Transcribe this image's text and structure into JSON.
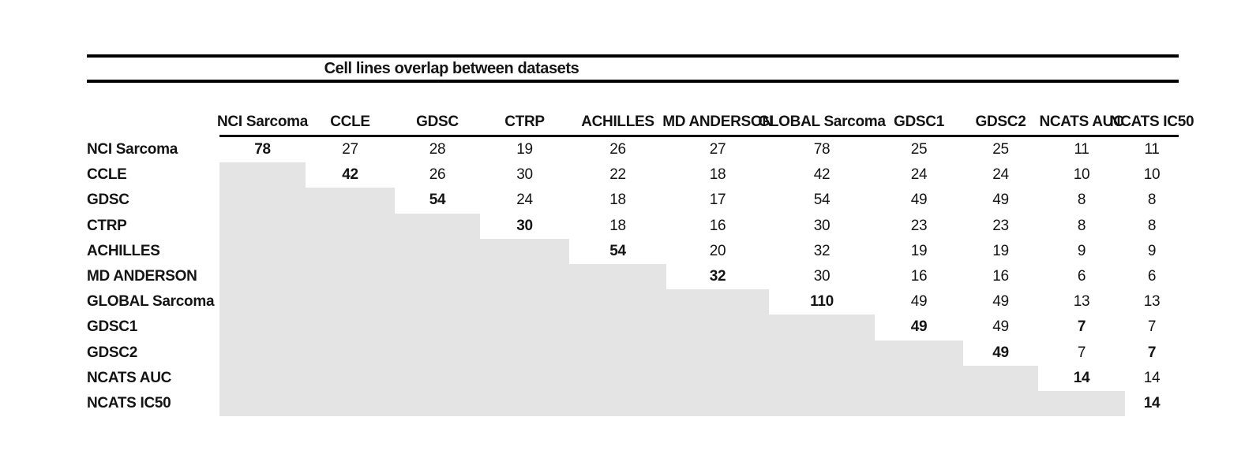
{
  "title": "Cell lines overlap between datasets",
  "colors": {
    "shaded_cell": "#e5e4e4",
    "text": "#141414",
    "rule": "#000000",
    "background": "#ffffff"
  },
  "matrix": {
    "columns": [
      "NCI Sarcoma",
      "CCLE",
      "GDSC",
      "CTRP",
      "ACHILLES",
      "MD ANDERSON",
      "GLOBAL Sarcoma",
      "GDSC1",
      "GDSC2",
      "NCATS AUC",
      "NCATS IC50"
    ],
    "rows": [
      {
        "label": "NCI Sarcoma",
        "cells": [
          {
            "v": "78",
            "bold": true
          },
          {
            "v": "27",
            "bold": false
          },
          {
            "v": "28",
            "bold": false
          },
          {
            "v": "19",
            "bold": false
          },
          {
            "v": "26",
            "bold": false
          },
          {
            "v": "27",
            "bold": false
          },
          {
            "v": "78",
            "bold": false
          },
          {
            "v": "25",
            "bold": false
          },
          {
            "v": "25",
            "bold": false
          },
          {
            "v": "11",
            "bold": false
          },
          {
            "v": "11",
            "bold": false
          }
        ]
      },
      {
        "label": "CCLE",
        "cells": [
          null,
          {
            "v": "42",
            "bold": true
          },
          {
            "v": "26",
            "bold": false
          },
          {
            "v": "30",
            "bold": false
          },
          {
            "v": "22",
            "bold": false
          },
          {
            "v": "18",
            "bold": false
          },
          {
            "v": "42",
            "bold": false
          },
          {
            "v": "24",
            "bold": false
          },
          {
            "v": "24",
            "bold": false
          },
          {
            "v": "10",
            "bold": false
          },
          {
            "v": "10",
            "bold": false
          }
        ]
      },
      {
        "label": "GDSC",
        "cells": [
          null,
          null,
          {
            "v": "54",
            "bold": true
          },
          {
            "v": "24",
            "bold": false
          },
          {
            "v": "18",
            "bold": false
          },
          {
            "v": "17",
            "bold": false
          },
          {
            "v": "54",
            "bold": false
          },
          {
            "v": "49",
            "bold": false
          },
          {
            "v": "49",
            "bold": false
          },
          {
            "v": "8",
            "bold": false
          },
          {
            "v": "8",
            "bold": false
          }
        ]
      },
      {
        "label": "CTRP",
        "cells": [
          null,
          null,
          null,
          {
            "v": "30",
            "bold": true
          },
          {
            "v": "18",
            "bold": false
          },
          {
            "v": "16",
            "bold": false
          },
          {
            "v": "30",
            "bold": false
          },
          {
            "v": "23",
            "bold": false
          },
          {
            "v": "23",
            "bold": false
          },
          {
            "v": "8",
            "bold": false
          },
          {
            "v": "8",
            "bold": false
          }
        ]
      },
      {
        "label": "ACHILLES",
        "cells": [
          null,
          null,
          null,
          null,
          {
            "v": "54",
            "bold": true
          },
          {
            "v": "20",
            "bold": false
          },
          {
            "v": "32",
            "bold": false
          },
          {
            "v": "19",
            "bold": false
          },
          {
            "v": "19",
            "bold": false
          },
          {
            "v": "9",
            "bold": false
          },
          {
            "v": "9",
            "bold": false
          }
        ]
      },
      {
        "label": "MD ANDERSON",
        "cells": [
          null,
          null,
          null,
          null,
          null,
          {
            "v": "32",
            "bold": true
          },
          {
            "v": "30",
            "bold": false
          },
          {
            "v": "16",
            "bold": false
          },
          {
            "v": "16",
            "bold": false
          },
          {
            "v": "6",
            "bold": false
          },
          {
            "v": "6",
            "bold": false
          }
        ]
      },
      {
        "label": "GLOBAL Sarcoma",
        "cells": [
          null,
          null,
          null,
          null,
          null,
          null,
          {
            "v": "110",
            "bold": true
          },
          {
            "v": "49",
            "bold": false
          },
          {
            "v": "49",
            "bold": false
          },
          {
            "v": "13",
            "bold": false
          },
          {
            "v": "13",
            "bold": false
          }
        ]
      },
      {
        "label": "GDSC1",
        "cells": [
          null,
          null,
          null,
          null,
          null,
          null,
          null,
          {
            "v": "49",
            "bold": true
          },
          {
            "v": "49",
            "bold": false
          },
          {
            "v": "7",
            "bold": true
          },
          {
            "v": "7",
            "bold": false
          }
        ]
      },
      {
        "label": "GDSC2",
        "cells": [
          null,
          null,
          null,
          null,
          null,
          null,
          null,
          null,
          {
            "v": "49",
            "bold": true
          },
          {
            "v": "7",
            "bold": false
          },
          {
            "v": "7",
            "bold": true
          }
        ]
      },
      {
        "label": "NCATS AUC",
        "cells": [
          null,
          null,
          null,
          null,
          null,
          null,
          null,
          null,
          null,
          {
            "v": "14",
            "bold": true
          },
          {
            "v": "14",
            "bold": false
          }
        ]
      },
      {
        "label": "NCATS IC50",
        "cells": [
          null,
          null,
          null,
          null,
          null,
          null,
          null,
          null,
          null,
          null,
          {
            "v": "14",
            "bold": true
          }
        ]
      }
    ]
  }
}
